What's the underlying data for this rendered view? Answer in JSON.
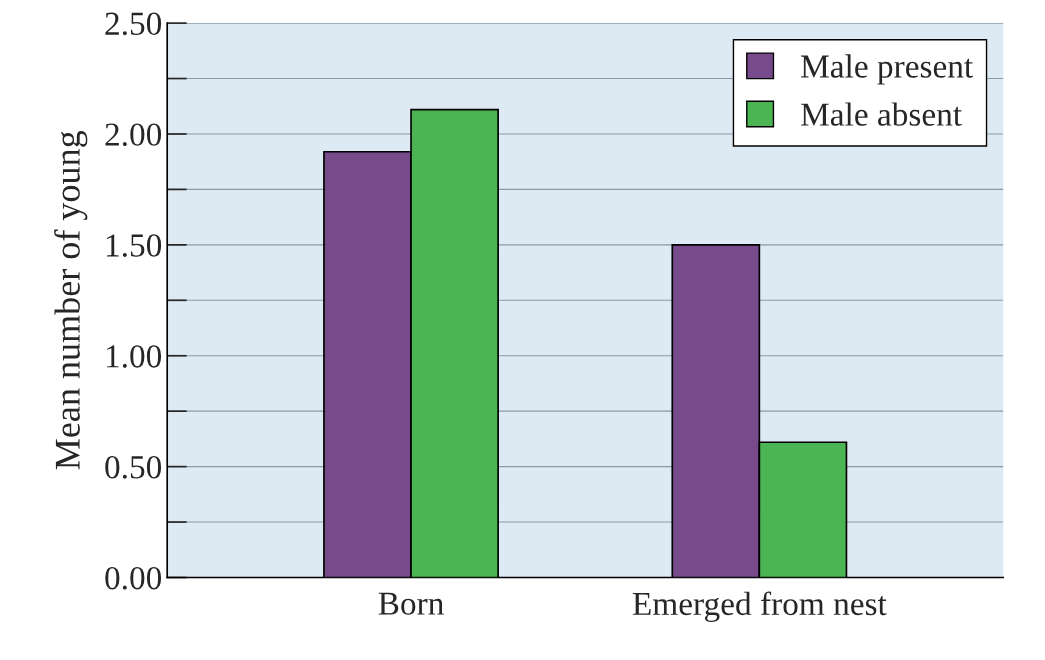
{
  "chart_data": {
    "type": "bar",
    "ylabel": "Mean number of young",
    "categories": [
      "Born",
      "Emerged from nest"
    ],
    "series": [
      {
        "name": "Male present",
        "color": "#774a8c",
        "values": [
          1.92,
          1.5
        ]
      },
      {
        "name": "Male absent",
        "color": "#4cb553",
        "values": [
          2.11,
          0.61
        ]
      }
    ],
    "ylim": [
      0,
      2.5
    ],
    "yticks": [
      {
        "value": 0,
        "label": "0.00"
      },
      {
        "value": 0.25,
        "label": null
      },
      {
        "value": 0.5,
        "label": "0.50"
      },
      {
        "value": 0.75,
        "label": null
      },
      {
        "value": 1,
        "label": "1.00"
      },
      {
        "value": 1.25,
        "label": null
      },
      {
        "value": 1.5,
        "label": "1.50"
      },
      {
        "value": 1.75,
        "label": null
      },
      {
        "value": 2,
        "label": "2.00"
      },
      {
        "value": 2.25,
        "label": null
      },
      {
        "value": 2.5,
        "label": "2.50"
      }
    ],
    "grid": "y",
    "legend": "top right"
  }
}
